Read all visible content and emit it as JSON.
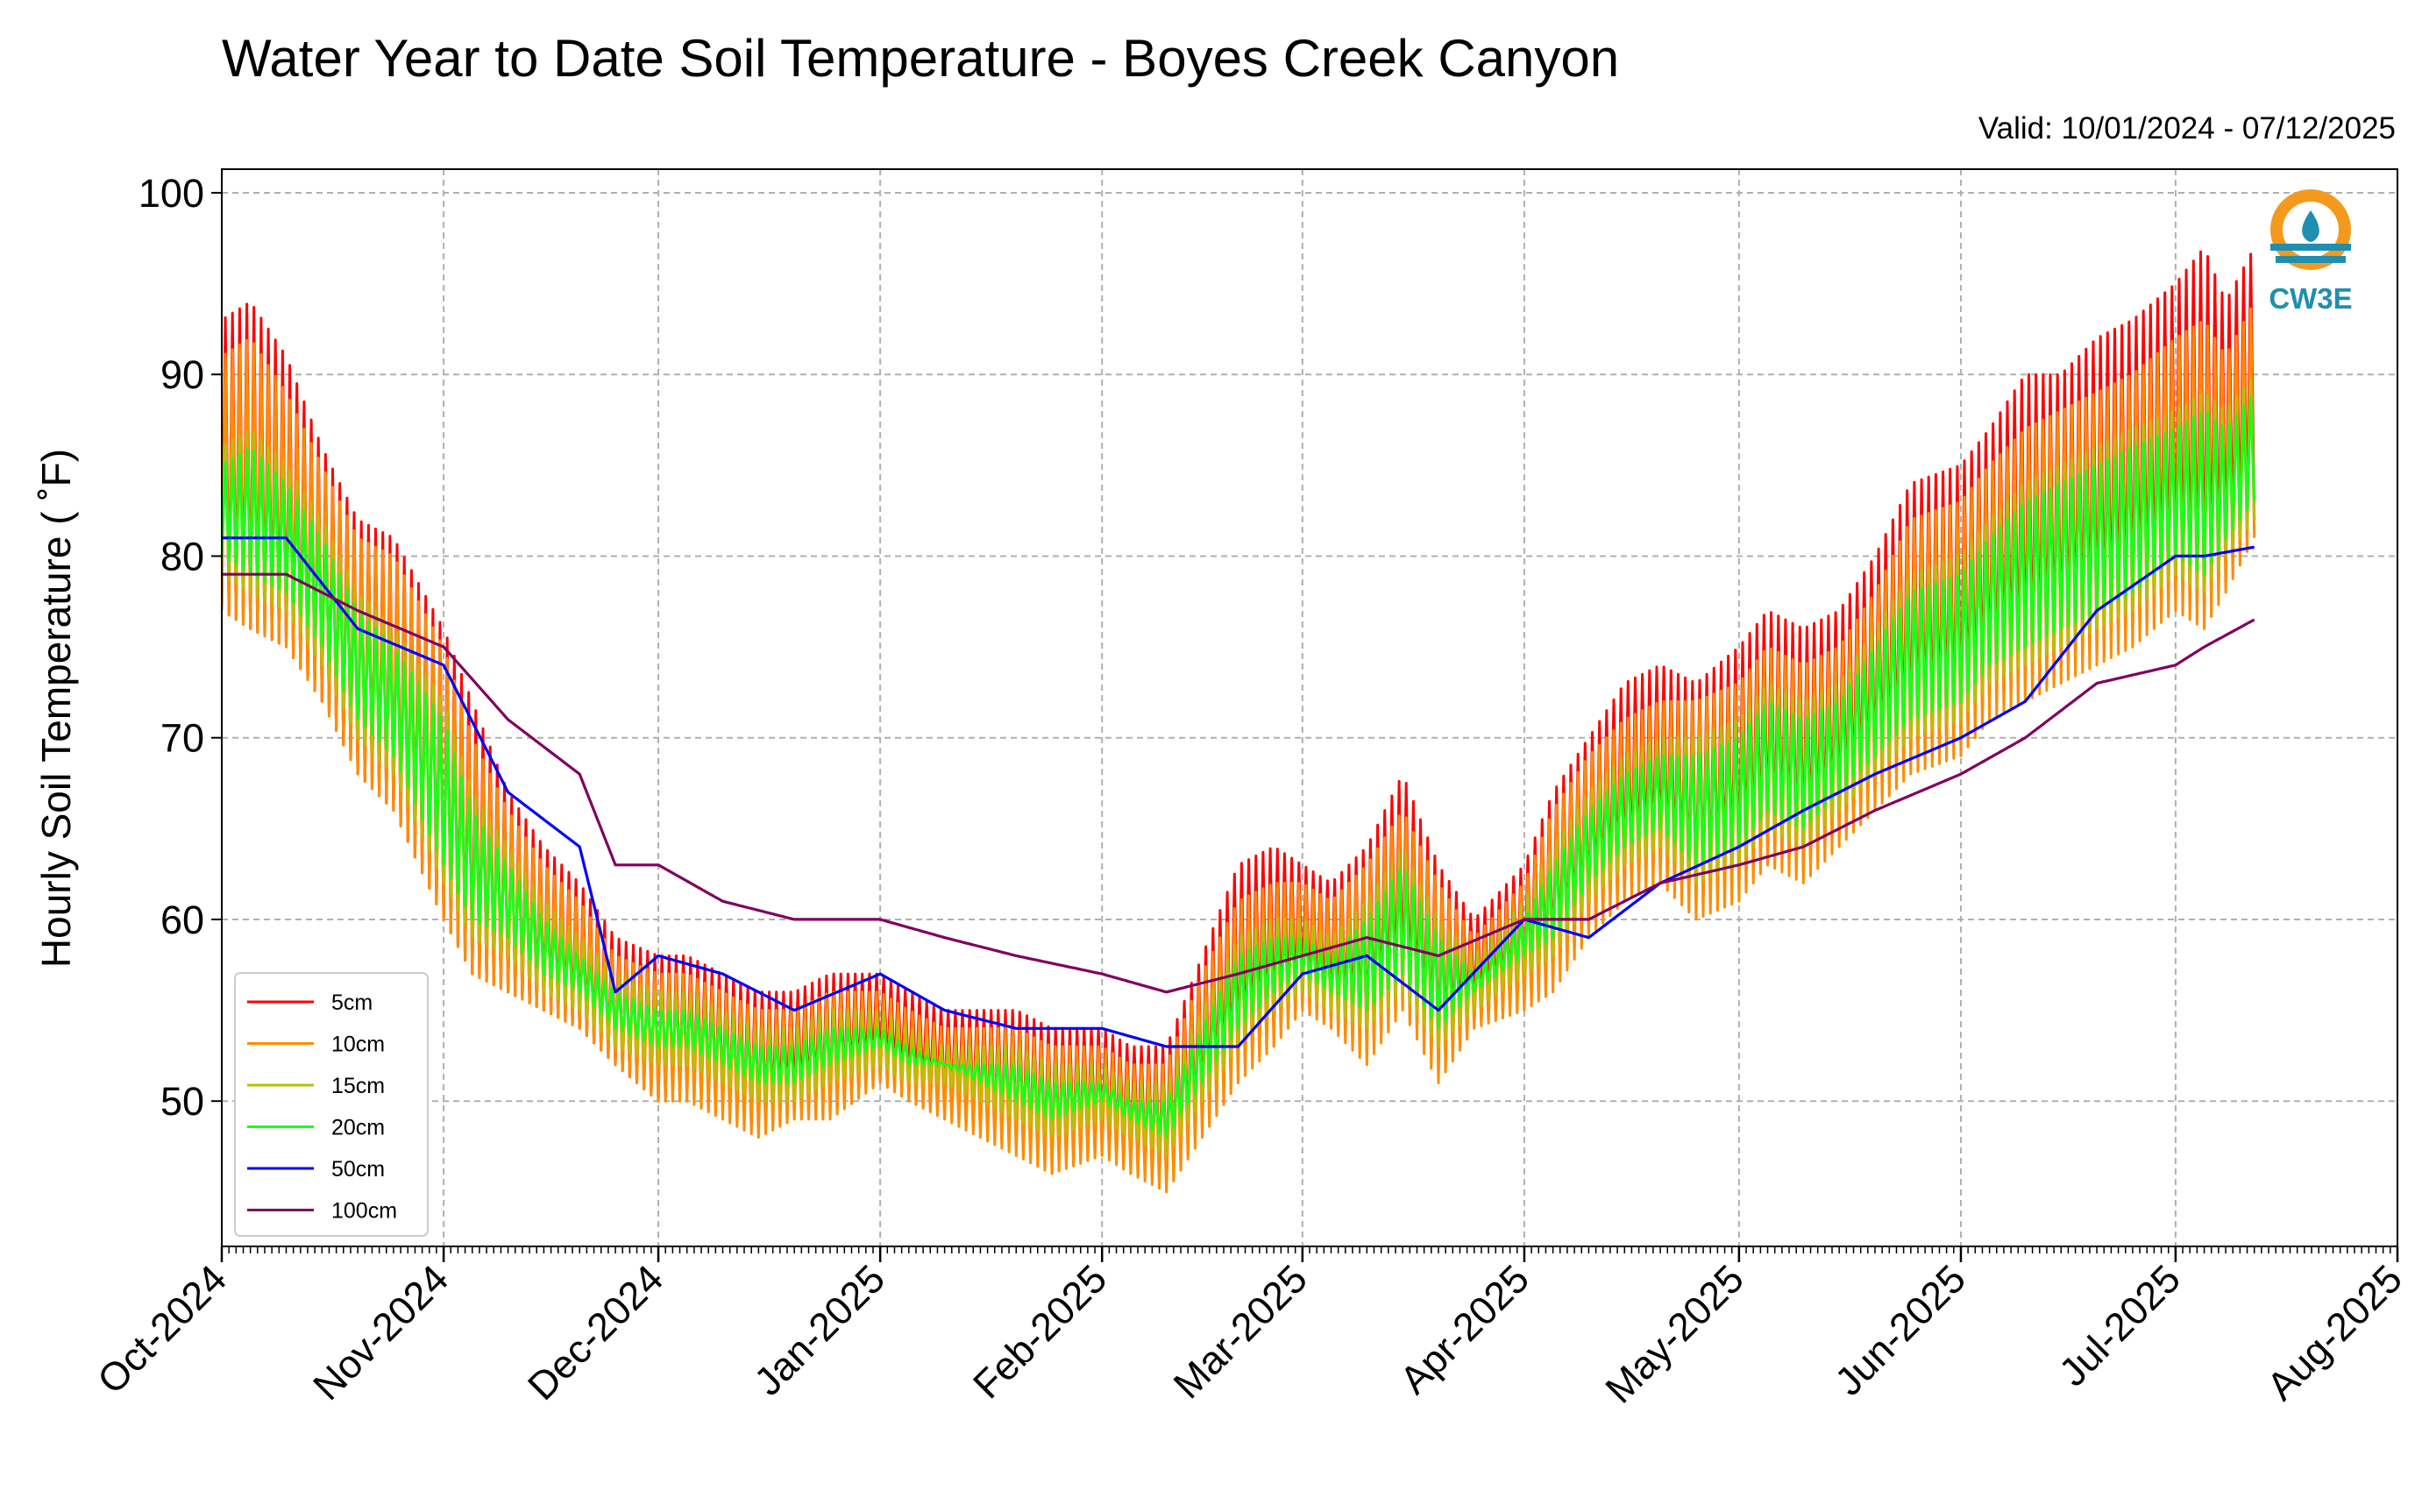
{
  "chart_data": {
    "type": "line",
    "title": "Water Year to Date Soil Temperature - Boyes Creek Canyon",
    "subtitle": "Valid: 10/01/2024 - 07/12/2025",
    "ylabel": "Hourly Soil Temperature ( ˚F)",
    "xlabel": "",
    "xlim": [
      "2024-10-01",
      "2025-08-01"
    ],
    "ylim": [
      42,
      101.3
    ],
    "yticks": [
      50,
      60,
      70,
      80,
      90,
      100
    ],
    "ytick_labels": [
      "50",
      "60",
      "70",
      "80",
      "90",
      "100"
    ],
    "xticks": [
      "2024-10-01",
      "2024-11-01",
      "2024-12-01",
      "2025-01-01",
      "2025-02-01",
      "2025-03-01",
      "2025-04-01",
      "2025-05-01",
      "2025-06-01",
      "2025-07-01",
      "2025-08-01"
    ],
    "xtick_labels": [
      "Oct-2024",
      "Nov-2024",
      "Dec-2024",
      "Jan-2025",
      "Feb-2025",
      "Mar-2025",
      "Apr-2025",
      "May-2025",
      "Jun-2025",
      "Jul-2025",
      "Aug-2025"
    ],
    "grid": true,
    "legend_position": "lower-left",
    "series": [
      {
        "name": "5cm",
        "color": "#ff0000",
        "x": [
          "2024-10-01",
          "2024-10-05",
          "2024-10-10",
          "2024-10-15",
          "2024-10-20",
          "2024-10-25",
          "2024-11-01",
          "2024-11-05",
          "2024-11-10",
          "2024-11-15",
          "2024-11-20",
          "2024-11-25",
          "2024-12-01",
          "2024-12-05",
          "2024-12-10",
          "2024-12-15",
          "2024-12-20",
          "2024-12-25",
          "2025-01-01",
          "2025-01-05",
          "2025-01-10",
          "2025-01-15",
          "2025-01-20",
          "2025-01-25",
          "2025-02-01",
          "2025-02-05",
          "2025-02-10",
          "2025-02-15",
          "2025-02-20",
          "2025-02-25",
          "2025-03-01",
          "2025-03-05",
          "2025-03-10",
          "2025-03-15",
          "2025-03-20",
          "2025-03-25",
          "2025-04-01",
          "2025-04-05",
          "2025-04-10",
          "2025-04-15",
          "2025-04-20",
          "2025-04-25",
          "2025-05-01",
          "2025-05-05",
          "2025-05-10",
          "2025-05-15",
          "2025-05-20",
          "2025-05-25",
          "2025-06-01",
          "2025-06-05",
          "2025-06-10",
          "2025-06-15",
          "2025-06-20",
          "2025-06-25",
          "2025-07-01",
          "2025-07-05",
          "2025-07-08",
          "2025-07-12"
        ],
        "min": [
          77,
          76,
          75,
          72,
          68,
          66,
          60,
          57,
          56,
          55,
          54,
          52,
          50,
          51,
          50,
          49,
          50,
          50,
          52,
          51,
          50,
          49,
          48,
          47,
          48,
          47,
          46,
          49,
          52,
          54,
          56,
          55,
          53,
          56,
          52,
          55,
          56,
          57,
          60,
          62,
          63,
          61,
          62,
          64,
          63,
          65,
          67,
          69,
          70,
          72,
          73,
          74,
          75,
          76,
          78,
          77,
          79,
          82
        ],
        "max": [
          93,
          94,
          91,
          86,
          82,
          81,
          76,
          72,
          67,
          64,
          62,
          59,
          58,
          58,
          57,
          56,
          56,
          57,
          57,
          56,
          55,
          55,
          55,
          54,
          54,
          53,
          53,
          58,
          63,
          64,
          63,
          62,
          64,
          68,
          63,
          60,
          63,
          67,
          70,
          73,
          74,
          73,
          75,
          77,
          76,
          77,
          80,
          84,
          85,
          87,
          90,
          90,
          92,
          93,
          95,
          97,
          94,
          97
        ]
      },
      {
        "name": "10cm",
        "color": "#ff8c00",
        "x": [
          "2024-10-01",
          "2024-10-05",
          "2024-10-10",
          "2024-10-15",
          "2024-10-20",
          "2024-10-25",
          "2024-11-01",
          "2024-11-05",
          "2024-11-10",
          "2024-11-15",
          "2024-11-20",
          "2024-11-25",
          "2024-12-01",
          "2024-12-05",
          "2024-12-10",
          "2024-12-15",
          "2024-12-20",
          "2024-12-25",
          "2025-01-01",
          "2025-01-05",
          "2025-01-10",
          "2025-01-15",
          "2025-01-20",
          "2025-01-25",
          "2025-02-01",
          "2025-02-05",
          "2025-02-10",
          "2025-02-15",
          "2025-02-20",
          "2025-02-25",
          "2025-03-01",
          "2025-03-05",
          "2025-03-10",
          "2025-03-15",
          "2025-03-20",
          "2025-03-25",
          "2025-04-01",
          "2025-04-05",
          "2025-04-10",
          "2025-04-15",
          "2025-04-20",
          "2025-04-25",
          "2025-05-01",
          "2025-05-05",
          "2025-05-10",
          "2025-05-15",
          "2025-05-20",
          "2025-05-25",
          "2025-06-01",
          "2025-06-05",
          "2025-06-10",
          "2025-06-15",
          "2025-06-20",
          "2025-06-25",
          "2025-07-01",
          "2025-07-05",
          "2025-07-08",
          "2025-07-12"
        ],
        "min": [
          77,
          76,
          75,
          72,
          68,
          66,
          60,
          57,
          56,
          55,
          54,
          52,
          50,
          50,
          49,
          48,
          49,
          49,
          51,
          50,
          49,
          48,
          47,
          46,
          47,
          46,
          45,
          48,
          51,
          53,
          55,
          54,
          52,
          55,
          51,
          54,
          55,
          56,
          59,
          61,
          62,
          60,
          61,
          63,
          62,
          64,
          66,
          68,
          69,
          71,
          72,
          73,
          74,
          75,
          77,
          76,
          78,
          81
        ],
        "max": [
          91,
          92,
          89,
          85,
          81,
          80,
          75,
          70,
          66,
          63,
          61,
          58,
          57,
          57,
          56,
          55,
          55,
          56,
          56,
          55,
          54,
          54,
          54,
          53,
          53,
          52,
          52,
          57,
          61,
          62,
          62,
          61,
          63,
          66,
          62,
          59,
          62,
          66,
          69,
          71,
          72,
          72,
          73,
          75,
          74,
          75,
          78,
          82,
          83,
          85,
          87,
          88,
          89,
          90,
          92,
          93,
          91,
          94
        ]
      },
      {
        "name": "15cm",
        "color": "#b8c000",
        "x": [
          "2024-10-01",
          "2024-10-05",
          "2024-10-10",
          "2024-10-15",
          "2024-10-20",
          "2024-10-25",
          "2024-11-01",
          "2024-11-05",
          "2024-11-10",
          "2024-11-15",
          "2024-11-20",
          "2024-11-25",
          "2024-12-01",
          "2024-12-05",
          "2024-12-10",
          "2024-12-15",
          "2024-12-20",
          "2024-12-25",
          "2025-01-01",
          "2025-01-05",
          "2025-01-10",
          "2025-01-15",
          "2025-01-20",
          "2025-01-25",
          "2025-02-01",
          "2025-02-05",
          "2025-02-10",
          "2025-02-15",
          "2025-02-20",
          "2025-02-25",
          "2025-03-01",
          "2025-03-05",
          "2025-03-10",
          "2025-03-15",
          "2025-03-20",
          "2025-03-25",
          "2025-04-01",
          "2025-04-05",
          "2025-04-10",
          "2025-04-15",
          "2025-04-20",
          "2025-04-25",
          "2025-05-01",
          "2025-05-05",
          "2025-05-10",
          "2025-05-15",
          "2025-05-20",
          "2025-05-25",
          "2025-06-01",
          "2025-06-05",
          "2025-06-10",
          "2025-06-15",
          "2025-06-20",
          "2025-06-25",
          "2025-07-01",
          "2025-07-05",
          "2025-07-08",
          "2025-07-12"
        ],
        "min": [
          79,
          78,
          77,
          74,
          70,
          68,
          62,
          59,
          58,
          56,
          55,
          53,
          52,
          52,
          51,
          50,
          50,
          51,
          52,
          51,
          51,
          50,
          49,
          48,
          49,
          48,
          47,
          50,
          53,
          55,
          56,
          55,
          54,
          56,
          53,
          55,
          57,
          58,
          61,
          63,
          64,
          62,
          63,
          65,
          64,
          66,
          68,
          70,
          71,
          73,
          74,
          75,
          76,
          77,
          79,
          78,
          80,
          82
        ],
        "max": [
          86,
          87,
          85,
          82,
          78,
          76,
          72,
          67,
          64,
          61,
          59,
          57,
          56,
          56,
          55,
          54,
          54,
          55,
          55,
          54,
          53,
          53,
          53,
          52,
          52,
          51,
          51,
          55,
          59,
          60,
          60,
          59,
          61,
          64,
          60,
          58,
          61,
          64,
          67,
          69,
          70,
          70,
          71,
          73,
          72,
          73,
          76,
          79,
          80,
          82,
          84,
          85,
          86,
          87,
          88,
          89,
          88,
          90
        ]
      },
      {
        "name": "20cm",
        "color": "#19ff19",
        "x": [
          "2024-10-01",
          "2024-10-05",
          "2024-10-10",
          "2024-10-15",
          "2024-10-20",
          "2024-10-25",
          "2024-11-01",
          "2024-11-05",
          "2024-11-10",
          "2024-11-15",
          "2024-11-20",
          "2024-11-25",
          "2024-12-01",
          "2024-12-05",
          "2024-12-10",
          "2024-12-15",
          "2024-12-20",
          "2024-12-25",
          "2025-01-01",
          "2025-01-05",
          "2025-01-10",
          "2025-01-15",
          "2025-01-20",
          "2025-01-25",
          "2025-02-01",
          "2025-02-05",
          "2025-02-10",
          "2025-02-15",
          "2025-02-20",
          "2025-02-25",
          "2025-03-01",
          "2025-03-05",
          "2025-03-10",
          "2025-03-15",
          "2025-03-20",
          "2025-03-25",
          "2025-04-01",
          "2025-04-05",
          "2025-04-10",
          "2025-04-15",
          "2025-04-20",
          "2025-04-25",
          "2025-05-01",
          "2025-05-05",
          "2025-05-10",
          "2025-05-15",
          "2025-05-20",
          "2025-05-25",
          "2025-06-01",
          "2025-06-05",
          "2025-06-10",
          "2025-06-15",
          "2025-06-20",
          "2025-06-25",
          "2025-07-01",
          "2025-07-05",
          "2025-07-08",
          "2025-07-12"
        ],
        "min": [
          80,
          79,
          78,
          75,
          71,
          69,
          63,
          60,
          59,
          57,
          56,
          54,
          53,
          53,
          52,
          51,
          51,
          52,
          53,
          52,
          52,
          51,
          50,
          49,
          50,
          49,
          48,
          51,
          54,
          56,
          57,
          56,
          55,
          57,
          54,
          56,
          58,
          59,
          62,
          64,
          65,
          63,
          64,
          66,
          65,
          67,
          69,
          71,
          72,
          74,
          75,
          76,
          77,
          78,
          80,
          79,
          81,
          83
        ],
        "max": [
          85,
          86,
          84,
          81,
          77,
          75,
          71,
          66,
          63,
          60,
          58,
          56,
          55,
          55,
          54,
          53,
          53,
          54,
          54,
          53,
          52,
          52,
          52,
          51,
          51,
          50,
          50,
          54,
          58,
          59,
          59,
          58,
          60,
          63,
          59,
          57,
          60,
          63,
          66,
          68,
          69,
          69,
          70,
          72,
          71,
          72,
          75,
          78,
          79,
          81,
          83,
          84,
          85,
          86,
          87,
          88,
          87,
          89
        ]
      },
      {
        "name": "50cm",
        "color": "#0000ff",
        "x": [
          "2024-10-01",
          "2024-10-10",
          "2024-10-20",
          "2024-11-01",
          "2024-11-10",
          "2024-11-20",
          "2024-11-25",
          "2024-12-01",
          "2024-12-10",
          "2024-12-20",
          "2025-01-01",
          "2025-01-10",
          "2025-01-20",
          "2025-02-01",
          "2025-02-10",
          "2025-02-20",
          "2025-03-01",
          "2025-03-10",
          "2025-03-20",
          "2025-04-01",
          "2025-04-10",
          "2025-04-20",
          "2025-05-01",
          "2025-05-10",
          "2025-05-20",
          "2025-06-01",
          "2025-06-10",
          "2025-06-20",
          "2025-07-01",
          "2025-07-05",
          "2025-07-12"
        ],
        "values": [
          81,
          81,
          76,
          74,
          67,
          64,
          56,
          58,
          57,
          55,
          57,
          55,
          54,
          54,
          53,
          53,
          57,
          58,
          55,
          60,
          59,
          62,
          64,
          66,
          68,
          70,
          72,
          77,
          80,
          80,
          80.5
        ]
      },
      {
        "name": "100cm",
        "color": "#800060",
        "x": [
          "2024-10-01",
          "2024-10-10",
          "2024-10-20",
          "2024-11-01",
          "2024-11-10",
          "2024-11-20",
          "2024-11-25",
          "2024-12-01",
          "2024-12-10",
          "2024-12-20",
          "2025-01-01",
          "2025-01-10",
          "2025-01-20",
          "2025-02-01",
          "2025-02-10",
          "2025-02-20",
          "2025-03-01",
          "2025-03-10",
          "2025-03-20",
          "2025-04-01",
          "2025-04-10",
          "2025-04-20",
          "2025-05-01",
          "2025-05-10",
          "2025-05-20",
          "2025-06-01",
          "2025-06-10",
          "2025-06-20",
          "2025-07-01",
          "2025-07-05",
          "2025-07-12"
        ],
        "values": [
          79,
          79,
          77,
          75,
          71,
          68,
          63,
          63,
          61,
          60,
          60,
          59,
          58,
          57,
          56,
          57,
          58,
          59,
          58,
          60,
          60,
          62,
          63,
          64,
          66,
          68,
          70,
          73,
          74,
          75,
          76.5
        ]
      }
    ]
  },
  "logo": {
    "text": "CW3E"
  }
}
